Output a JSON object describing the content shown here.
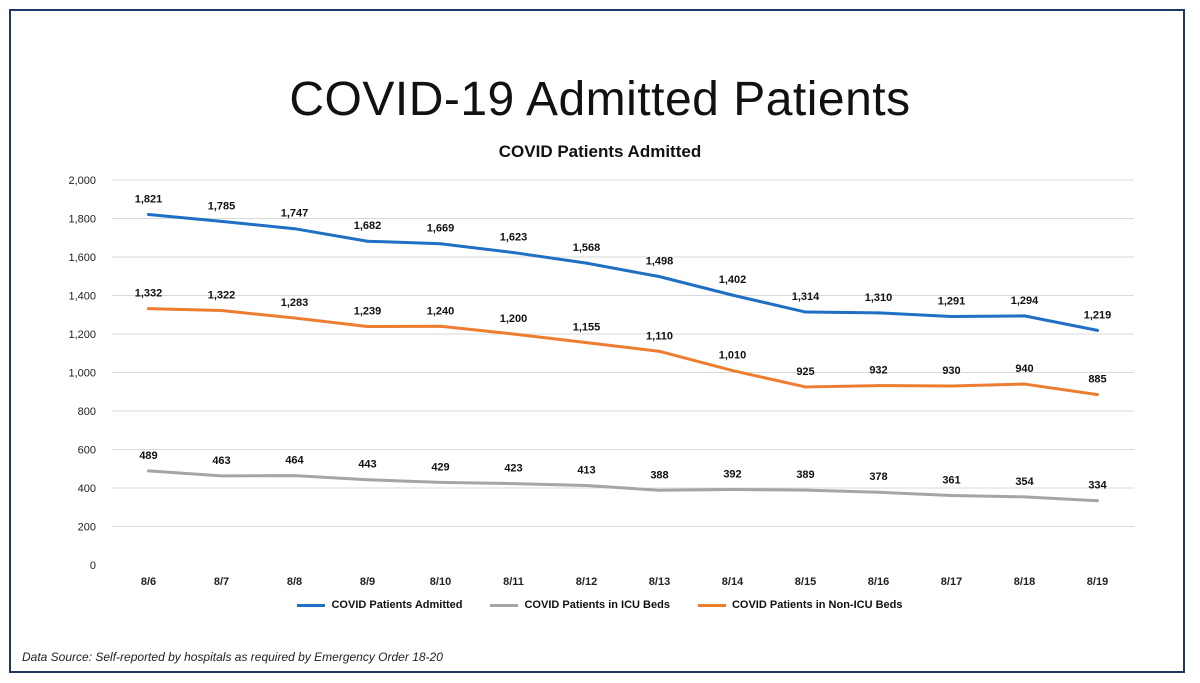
{
  "page": {
    "title": "COVID-19 Admitted Patients",
    "source": "Data Source: Self-reported by hospitals as required by Emergency Order 18-20"
  },
  "chart_data": {
    "type": "line",
    "title": "COVID Patients Admitted",
    "xlabel": "",
    "ylabel": "",
    "ylim": [
      0,
      2000
    ],
    "yticks": [
      "0",
      "200",
      "400",
      "600",
      "800",
      "1,000",
      "1,200",
      "1,400",
      "1,600",
      "1,800",
      "2,000"
    ],
    "grid": true,
    "legend_position": "bottom",
    "categories": [
      "8/6",
      "8/7",
      "8/8",
      "8/9",
      "8/10",
      "8/11",
      "8/12",
      "8/13",
      "8/14",
      "8/15",
      "8/16",
      "8/17",
      "8/18",
      "8/19"
    ],
    "series": [
      {
        "name": "COVID Patients Admitted",
        "color": "#1f6fc4",
        "values": [
          1821,
          1785,
          1747,
          1682,
          1669,
          1623,
          1568,
          1498,
          1402,
          1314,
          1310,
          1291,
          1294,
          1219
        ],
        "labels": [
          "1,821",
          "1,785",
          "1,747",
          "1,682",
          "1,669",
          "1,623",
          "1,568",
          "1,498",
          "1,402",
          "1,314",
          "1,310",
          "1,291",
          "1,294",
          "1,219"
        ]
      },
      {
        "name": "COVID Patients in ICU Beds",
        "color": "#a5a5a5",
        "values": [
          489,
          463,
          464,
          443,
          429,
          423,
          413,
          388,
          392,
          389,
          378,
          361,
          354,
          334
        ],
        "labels": [
          "489",
          "463",
          "464",
          "443",
          "429",
          "423",
          "413",
          "388",
          "392",
          "389",
          "378",
          "361",
          "354",
          "334"
        ]
      },
      {
        "name": "COVID Patients in Non-ICU Beds",
        "color": "#ed7d31",
        "values": [
          1332,
          1322,
          1283,
          1239,
          1240,
          1200,
          1155,
          1110,
          1010,
          925,
          932,
          930,
          940,
          885
        ],
        "labels": [
          "1,332",
          "1,322",
          "1,283",
          "1,239",
          "1,240",
          "1,200",
          "1,155",
          "1,110",
          "1,010",
          "925",
          "932",
          "930",
          "940",
          "885"
        ]
      }
    ]
  }
}
